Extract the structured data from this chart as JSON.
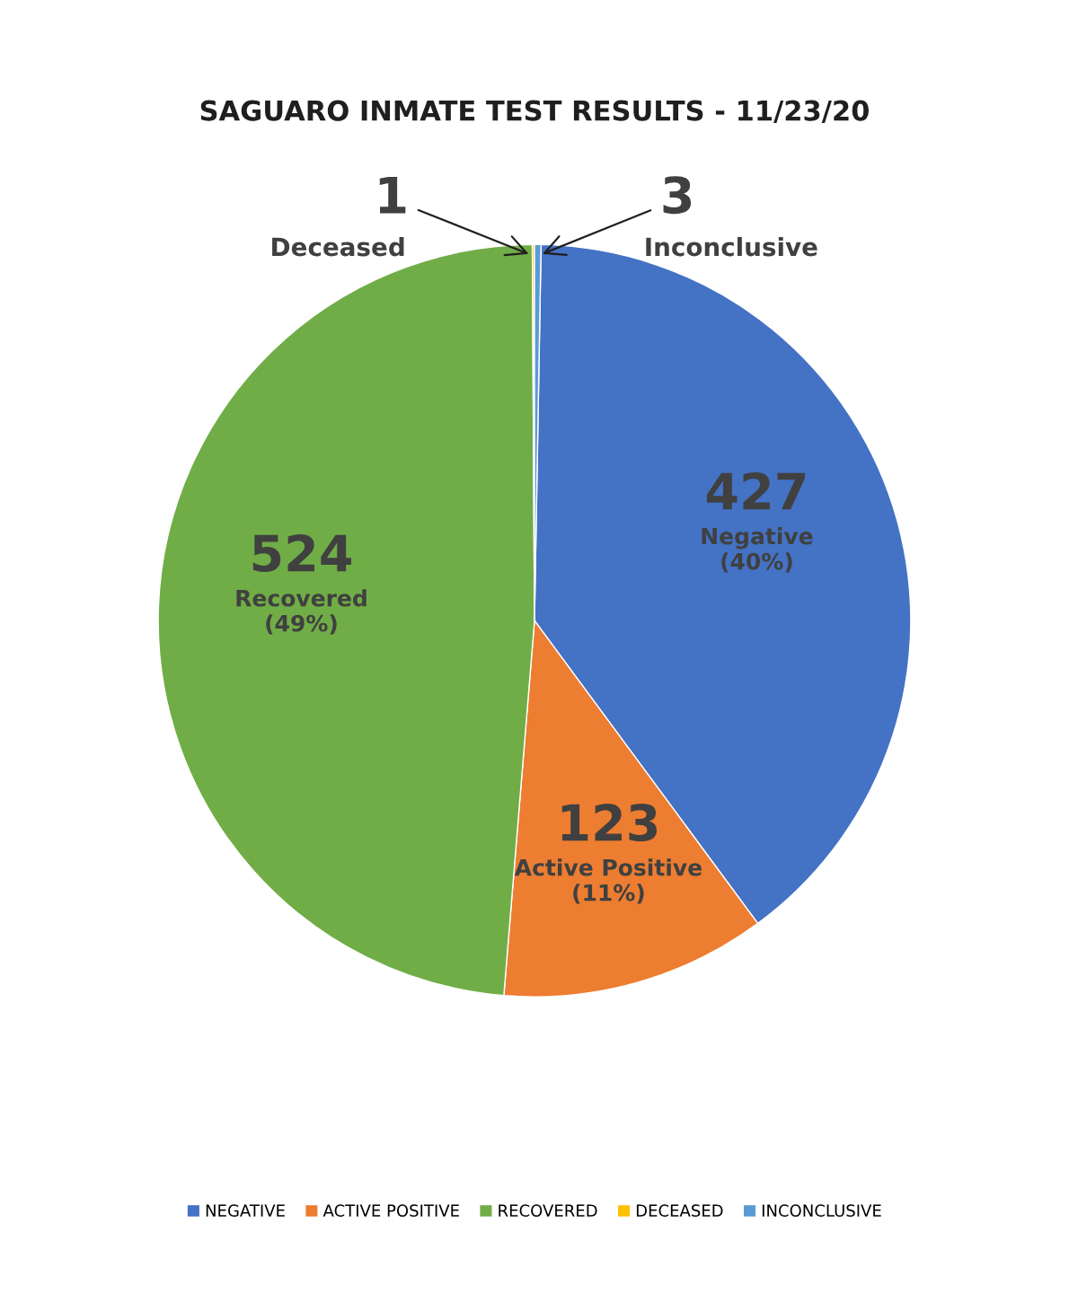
{
  "chart_data": {
    "type": "pie",
    "title": "SAGUARO INMATE TEST RESULTS - 11/23/20",
    "categories": [
      "NEGATIVE",
      "ACTIVE POSITIVE",
      "RECOVERED",
      "DECEASED",
      "INCONCLUSIVE"
    ],
    "values": [
      427,
      123,
      524,
      1,
      3
    ],
    "colors": [
      "#4472c4",
      "#ed7d31",
      "#70ad47",
      "#ffc000",
      "#5b9bd5"
    ],
    "data_labels": true,
    "annotations": [
      "Negative\n(40%)",
      "Active Positive\n(11%)",
      "Recovered\n(49%)",
      "Deceased",
      "Inconclusive"
    ],
    "legend": "bottom"
  }
}
